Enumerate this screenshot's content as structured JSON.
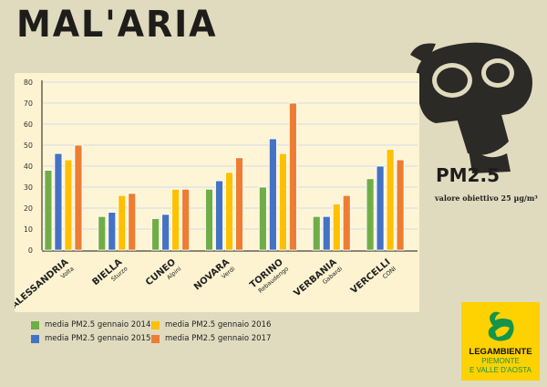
{
  "title": "MAL'ARIA",
  "pm": {
    "label": "PM2.5",
    "subtitle": "valore obiettivo 25 µg/m³"
  },
  "logo": {
    "name": "LEGAMBIENTE",
    "region_line1": "PIEMONTE",
    "region_line2": "E VALLE D'AOSTA"
  },
  "chart_data": {
    "type": "bar",
    "categories": [
      "ALESSANDRIA",
      "BIELLA",
      "CUNEO",
      "NOVARA",
      "TORINO",
      "VERBANIA",
      "VERCELLI"
    ],
    "subcategories": [
      "Volta",
      "Sturzo",
      "Alpini",
      "Verdi",
      "Rebaudengo",
      "Gabardi",
      "CONI"
    ],
    "series": [
      {
        "name": "media PM2.5 gennaio 2014",
        "color": "#70ad47",
        "values": [
          38,
          16,
          15,
          29,
          30,
          16,
          34
        ]
      },
      {
        "name": "media PM2.5 gennaio 2015",
        "color": "#4472c4",
        "values": [
          46,
          18,
          17,
          33,
          53,
          16,
          40
        ]
      },
      {
        "name": "media PM2.5 gennaio 2016",
        "color": "#ffc000",
        "values": [
          43,
          26,
          29,
          37,
          46,
          22,
          48
        ]
      },
      {
        "name": "media PM2.5 gennaio 2017",
        "color": "#ed7d31",
        "values": [
          50,
          27,
          29,
          44,
          70,
          26,
          43
        ]
      }
    ],
    "ylim": [
      0,
      80
    ],
    "yticks": [
      0,
      10,
      20,
      30,
      40,
      50,
      60,
      70,
      80
    ],
    "grid": true,
    "legend": "bottom-left"
  }
}
